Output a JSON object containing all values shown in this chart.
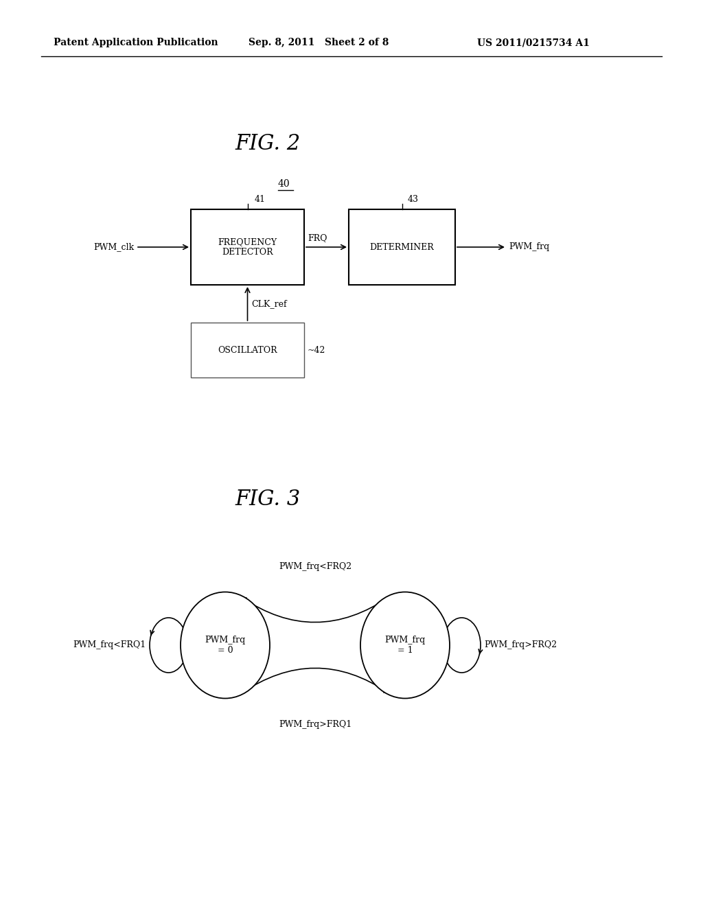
{
  "bg_color": "#ffffff",
  "header_left": "Patent Application Publication",
  "header_mid": "Sep. 8, 2011   Sheet 2 of 8",
  "header_right": "US 2011/0215734 A1",
  "fig2_title": "FIG. 2",
  "fig3_title": "FIG. 3",
  "label_40": "40",
  "label_41": "41",
  "label_42": "42",
  "label_43": "43",
  "box_freq_det": "FREQUENCY\nDETECTOR",
  "box_determiner": "DETERMINER",
  "box_oscillator": "OSCILLATOR",
  "arrow_pwm_clk": "PWM_clk",
  "arrow_frq": "FRQ",
  "arrow_pwm_frq": "PWM_frq",
  "arrow_clk_ref": "CLK_ref",
  "circle0_label": "PWM_frq\n= 0",
  "circle1_label": "PWM_frq\n= 1",
  "arc_top_label": "PWM_frq<FRQ2",
  "arc_bot_label": "PWM_frq>FRQ1",
  "arc_left_label": "PWM_frq<FRQ1",
  "arc_right_label": "PWM_frq>FRQ2"
}
